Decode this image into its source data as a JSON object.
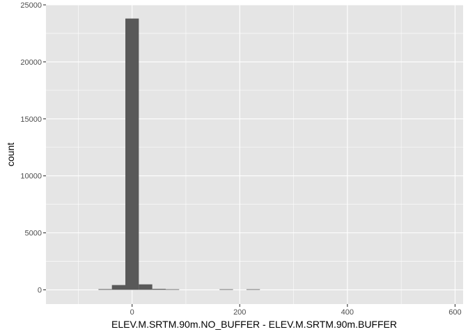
{
  "chart_data": {
    "type": "bar",
    "subtype": "histogram",
    "title": "",
    "xlabel": "ELEV.M.SRTM.90m.NO_BUFFER - ELEV.M.SRTM.90m.BUFFER",
    "ylabel": "count",
    "xlim": [
      -160,
      615
    ],
    "ylim": [
      -1250,
      25000
    ],
    "x_ticks": [
      {
        "value": 0,
        "label": "0"
      },
      {
        "value": 200,
        "label": "200"
      },
      {
        "value": 400,
        "label": "400"
      },
      {
        "value": 600,
        "label": "600"
      }
    ],
    "y_ticks": [
      {
        "value": 0,
        "label": "0"
      },
      {
        "value": 5000,
        "label": "5000"
      },
      {
        "value": 10000,
        "label": "10000"
      },
      {
        "value": 15000,
        "label": "15000"
      },
      {
        "value": 20000,
        "label": "20000"
      },
      {
        "value": 25000,
        "label": "25000"
      }
    ],
    "grid": true,
    "bin_width": 25,
    "bins": [
      {
        "x0": -62.5,
        "x1": -37.5,
        "count": 60
      },
      {
        "x0": -37.5,
        "x1": -12.5,
        "count": 420
      },
      {
        "x0": -12.5,
        "x1": 12.5,
        "count": 23800
      },
      {
        "x0": 12.5,
        "x1": 37.5,
        "count": 480
      },
      {
        "x0": 37.5,
        "x1": 62.5,
        "count": 80
      },
      {
        "x0": 62.5,
        "x1": 87.5,
        "count": 20
      },
      {
        "x0": 162.5,
        "x1": 187.5,
        "count": 5
      },
      {
        "x0": 212.5,
        "x1": 237.5,
        "count": 3
      }
    ],
    "colors": {
      "panel": "#e5e5e5",
      "grid_major": "#ffffff",
      "bar": "#595959",
      "tick_label": "#4d4d4d"
    }
  }
}
